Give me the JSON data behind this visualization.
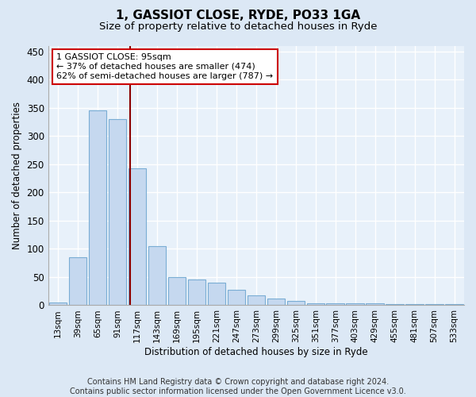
{
  "title1": "1, GASSIOT CLOSE, RYDE, PO33 1GA",
  "title2": "Size of property relative to detached houses in Ryde",
  "xlabel": "Distribution of detached houses by size in Ryde",
  "ylabel": "Number of detached properties",
  "categories": [
    "13sqm",
    "39sqm",
    "65sqm",
    "91sqm",
    "117sqm",
    "143sqm",
    "169sqm",
    "195sqm",
    "221sqm",
    "247sqm",
    "273sqm",
    "299sqm",
    "325sqm",
    "351sqm",
    "377sqm",
    "403sqm",
    "429sqm",
    "455sqm",
    "481sqm",
    "507sqm",
    "533sqm"
  ],
  "values": [
    5,
    85,
    345,
    330,
    243,
    105,
    50,
    45,
    40,
    28,
    18,
    12,
    7,
    4,
    3,
    3,
    3,
    2,
    2,
    2,
    2
  ],
  "bar_color": "#c5d8ef",
  "bar_edge_color": "#7aadd4",
  "vline_x": 3.65,
  "vline_color": "#8b0000",
  "annotation_text": "1 GASSIOT CLOSE: 95sqm\n← 37% of detached houses are smaller (474)\n62% of semi-detached houses are larger (787) →",
  "annotation_box_color": "#ffffff",
  "annotation_box_edge": "#cc0000",
  "ylim": [
    0,
    460
  ],
  "yticks": [
    0,
    50,
    100,
    150,
    200,
    250,
    300,
    350,
    400,
    450
  ],
  "footer_text": "Contains HM Land Registry data © Crown copyright and database right 2024.\nContains public sector information licensed under the Open Government Licence v3.0.",
  "bg_color": "#dce8f5",
  "axes_bg_color": "#e8f1fa"
}
